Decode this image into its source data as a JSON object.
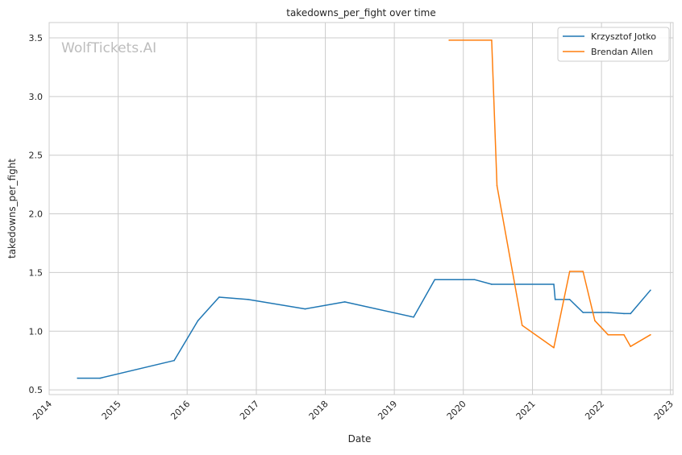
{
  "chart_data": {
    "type": "line",
    "title": "takedowns_per_fight over time",
    "xlabel": "Date",
    "ylabel": "takedowns_per_fight",
    "watermark": "WolfTickets.AI",
    "xlim": [
      "2014-01-01",
      "2023-01-15"
    ],
    "ylim": [
      0.46,
      3.63
    ],
    "x_ticks": [
      "2014-01-01",
      "2015-01-01",
      "2016-01-01",
      "2017-01-01",
      "2018-01-01",
      "2019-01-01",
      "2020-01-01",
      "2021-01-01",
      "2022-01-01",
      "2023-01-01"
    ],
    "x_tick_labels": [
      "2014",
      "2015",
      "2016",
      "2017",
      "2018",
      "2019",
      "2020",
      "2021",
      "2022",
      "2023"
    ],
    "y_ticks": [
      0.5,
      1.0,
      1.5,
      2.0,
      2.5,
      3.0,
      3.5
    ],
    "y_tick_labels": [
      "0.5",
      "1.0",
      "1.5",
      "2.0",
      "2.5",
      "3.0",
      "3.5"
    ],
    "grid": true,
    "legend_position": "top-right",
    "series": [
      {
        "name": "Krzysztof Jotko",
        "color": "#1f77b4",
        "points": [
          {
            "x": "2014-05-31",
            "y": 0.6
          },
          {
            "x": "2014-09-27",
            "y": 0.6
          },
          {
            "x": "2015-10-24",
            "y": 0.75
          },
          {
            "x": "2016-02-27",
            "y": 1.09
          },
          {
            "x": "2016-06-18",
            "y": 1.29
          },
          {
            "x": "2016-11-19",
            "y": 1.27
          },
          {
            "x": "2017-09-16",
            "y": 1.19
          },
          {
            "x": "2018-04-14",
            "y": 1.25
          },
          {
            "x": "2019-04-13",
            "y": 1.12
          },
          {
            "x": "2019-08-03",
            "y": 1.44
          },
          {
            "x": "2020-02-29",
            "y": 1.44
          },
          {
            "x": "2020-05-30",
            "y": 1.4
          },
          {
            "x": "2021-04-24",
            "y": 1.4
          },
          {
            "x": "2021-05-01",
            "y": 1.27
          },
          {
            "x": "2021-07-17",
            "y": 1.27
          },
          {
            "x": "2021-09-25",
            "y": 1.16
          },
          {
            "x": "2022-02-05",
            "y": 1.16
          },
          {
            "x": "2022-04-30",
            "y": 1.15
          },
          {
            "x": "2022-06-04",
            "y": 1.15
          },
          {
            "x": "2022-09-17",
            "y": 1.35
          }
        ]
      },
      {
        "name": "Brendan Allen",
        "color": "#ff7f0e",
        "points": [
          {
            "x": "2019-10-18",
            "y": 3.48
          },
          {
            "x": "2020-05-30",
            "y": 3.48
          },
          {
            "x": "2020-06-27",
            "y": 2.24
          },
          {
            "x": "2020-11-07",
            "y": 1.05
          },
          {
            "x": "2021-04-24",
            "y": 0.86
          },
          {
            "x": "2021-07-17",
            "y": 1.51
          },
          {
            "x": "2021-09-25",
            "y": 1.51
          },
          {
            "x": "2021-11-27",
            "y": 1.09
          },
          {
            "x": "2022-02-05",
            "y": 0.97
          },
          {
            "x": "2022-04-30",
            "y": 0.97
          },
          {
            "x": "2022-06-04",
            "y": 0.87
          },
          {
            "x": "2022-09-17",
            "y": 0.97
          }
        ]
      }
    ]
  }
}
